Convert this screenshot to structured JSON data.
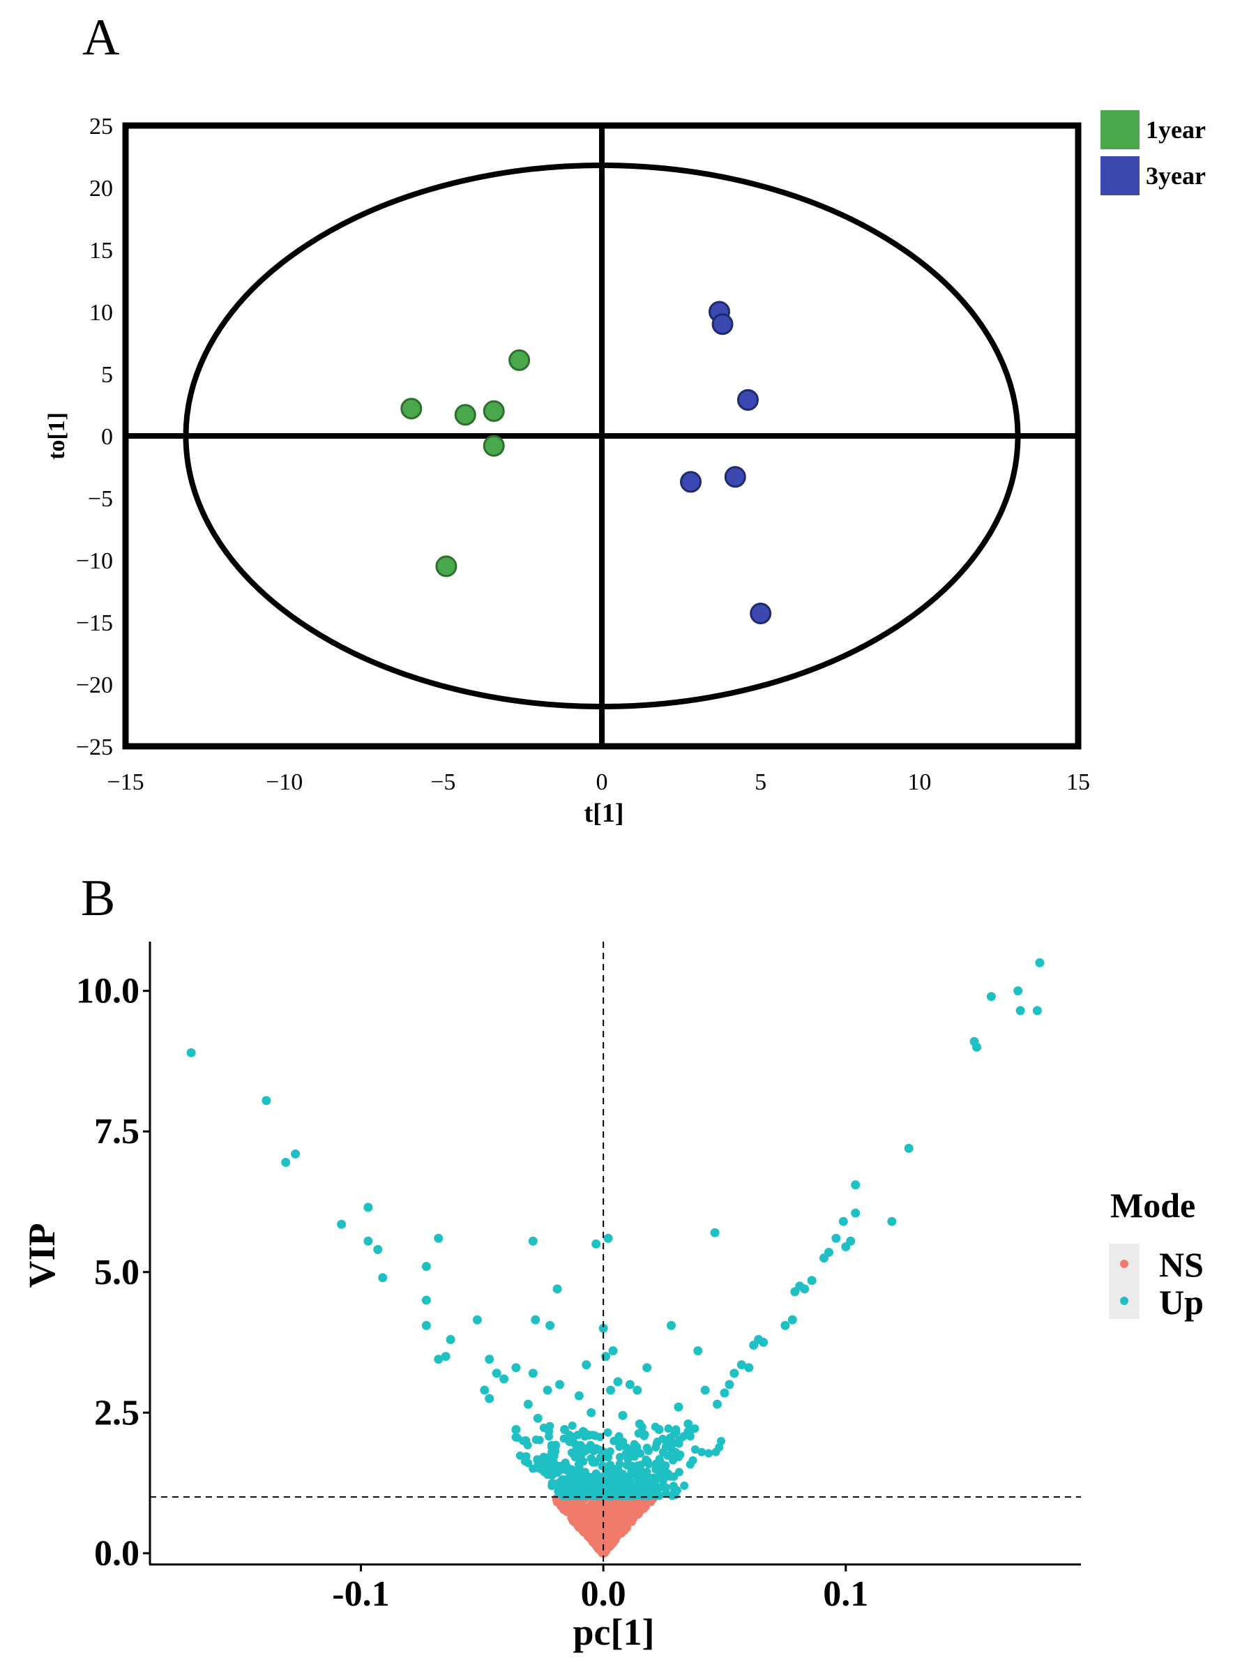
{
  "panels": {
    "a_letter": "A",
    "b_letter": "B"
  },
  "chart_data": [
    {
      "id": "A",
      "type": "scatter",
      "title": "",
      "xlabel": "t[1]",
      "ylabel": "to[1]",
      "xlim": [
        -15,
        15
      ],
      "ylim": [
        -25,
        25
      ],
      "xticks": [
        -15,
        -10,
        -5,
        0,
        5,
        10,
        15
      ],
      "yticks": [
        -25,
        -20,
        -15,
        -10,
        -5,
        0,
        5,
        10,
        15,
        20,
        25
      ],
      "xtick_labels": [
        "−15",
        "−10",
        "−5",
        "0",
        "5",
        "10",
        "15"
      ],
      "ytick_labels": [
        "−25",
        "−20",
        "−15",
        "−10",
        "−5",
        "0",
        "5",
        "10",
        "15",
        "20",
        "25"
      ],
      "ellipse": {
        "rx": 13.1,
        "ry": 21.8
      },
      "legend_position": "right",
      "series": [
        {
          "name": "1year",
          "color": "#4aa84c",
          "stroke": "#2e6e2f",
          "points": [
            [
              -6.0,
              2.2
            ],
            [
              -4.3,
              1.7
            ],
            [
              -3.4,
              2.0
            ],
            [
              -2.6,
              6.1
            ],
            [
              -3.4,
              -0.8
            ],
            [
              -4.9,
              -10.5
            ]
          ]
        },
        {
          "name": "3year",
          "color": "#3a48b0",
          "stroke": "#1f2a6e",
          "points": [
            [
              3.7,
              10.0
            ],
            [
              3.8,
              9.0
            ],
            [
              4.6,
              2.9
            ],
            [
              2.8,
              -3.7
            ],
            [
              4.2,
              -3.3
            ],
            [
              5.0,
              -14.3
            ]
          ]
        }
      ]
    },
    {
      "id": "B",
      "type": "scatter",
      "title": "",
      "xlabel": "pc[1]",
      "ylabel": "VIP",
      "xlim": [
        -0.187,
        0.197
      ],
      "ylim": [
        -0.2,
        11.0
      ],
      "xticks": [
        -0.1,
        0.0,
        0.1
      ],
      "yticks": [
        0.0,
        2.5,
        5.0,
        7.5,
        10.0
      ],
      "xtick_labels": [
        "-0.1",
        "0.0",
        "0.1"
      ],
      "ytick_labels": [
        "0.0",
        "2.5",
        "5.0",
        "7.5",
        "10.0"
      ],
      "hline": 1.0,
      "vline": 0.0,
      "legend_title": "Mode",
      "legend_position": "right",
      "series": [
        {
          "name": "NS",
          "color": "#f07b6c"
        },
        {
          "name": "Up",
          "color": "#1fc0c4"
        }
      ],
      "up_points": [
        [
          -0.17,
          8.9
        ],
        [
          -0.139,
          8.05
        ],
        [
          -0.131,
          6.95
        ],
        [
          -0.127,
          7.1
        ],
        [
          -0.108,
          5.85
        ],
        [
          -0.097,
          6.15
        ],
        [
          -0.097,
          5.55
        ],
        [
          -0.093,
          5.4
        ],
        [
          -0.091,
          4.9
        ],
        [
          -0.073,
          5.1
        ],
        [
          -0.073,
          4.5
        ],
        [
          -0.073,
          4.05
        ],
        [
          -0.068,
          5.6
        ],
        [
          -0.068,
          3.45
        ],
        [
          -0.065,
          3.5
        ],
        [
          -0.063,
          3.8
        ],
        [
          -0.052,
          4.15
        ],
        [
          -0.047,
          3.45
        ],
        [
          -0.049,
          2.9
        ],
        [
          -0.047,
          2.75
        ],
        [
          -0.044,
          3.2
        ],
        [
          -0.041,
          3.1
        ],
        [
          -0.036,
          3.3
        ],
        [
          -0.036,
          2.2
        ],
        [
          -0.031,
          2.65
        ],
        [
          -0.032,
          2.0
        ],
        [
          -0.029,
          5.55
        ],
        [
          -0.029,
          3.2
        ],
        [
          -0.028,
          4.15
        ],
        [
          -0.027,
          2.4
        ],
        [
          -0.023,
          2.9
        ],
        [
          -0.022,
          4.05
        ],
        [
          -0.019,
          4.7
        ],
        [
          -0.018,
          3.0
        ],
        [
          -0.016,
          2.2
        ],
        [
          -0.01,
          2.8
        ],
        [
          -0.007,
          3.35
        ],
        [
          -0.006,
          2.1
        ],
        [
          -0.005,
          2.5
        ],
        [
          -0.003,
          5.5
        ],
        [
          0.0,
          4.0
        ],
        [
          0.001,
          3.5
        ],
        [
          0.002,
          5.6
        ],
        [
          0.004,
          3.6
        ],
        [
          0.003,
          2.9
        ],
        [
          0.006,
          3.05
        ],
        [
          0.008,
          2.45
        ],
        [
          0.011,
          3.0
        ],
        [
          0.014,
          2.9
        ],
        [
          0.015,
          2.3
        ],
        [
          0.018,
          3.3
        ],
        [
          0.023,
          2.2
        ],
        [
          0.028,
          4.05
        ],
        [
          0.031,
          2.6
        ],
        [
          0.035,
          2.3
        ],
        [
          0.039,
          3.6
        ],
        [
          0.046,
          5.7
        ],
        [
          0.042,
          2.9
        ],
        [
          0.047,
          2.65
        ],
        [
          0.05,
          2.85
        ],
        [
          0.052,
          3.0
        ],
        [
          0.054,
          3.2
        ],
        [
          0.057,
          3.35
        ],
        [
          0.06,
          3.3
        ],
        [
          0.062,
          3.7
        ],
        [
          0.064,
          3.8
        ],
        [
          0.066,
          3.75
        ],
        [
          0.075,
          4.05
        ],
        [
          0.078,
          4.15
        ],
        [
          0.079,
          4.65
        ],
        [
          0.081,
          4.75
        ],
        [
          0.083,
          4.7
        ],
        [
          0.086,
          4.85
        ],
        [
          0.091,
          5.25
        ],
        [
          0.093,
          5.35
        ],
        [
          0.096,
          5.6
        ],
        [
          0.099,
          5.9
        ],
        [
          0.1,
          5.45
        ],
        [
          0.102,
          5.55
        ],
        [
          0.104,
          6.05
        ],
        [
          0.104,
          6.55
        ],
        [
          0.119,
          5.9
        ],
        [
          0.126,
          7.2
        ],
        [
          0.153,
          9.1
        ],
        [
          0.154,
          9.0
        ],
        [
          0.16,
          9.9
        ],
        [
          0.171,
          10.0
        ],
        [
          0.172,
          9.65
        ],
        [
          0.179,
          9.65
        ],
        [
          0.18,
          10.5
        ]
      ],
      "ns_points_description": "dense cluster of points with VIP < 1.0 near pc[1] = 0, forming a V shape from (0, 0) to (±0.02, 1.0)",
      "up_points_cluster_description": "dense band of points just above VIP = 1.0 along the V envelope between pc[1] -0.03 and 0.04"
    }
  ]
}
